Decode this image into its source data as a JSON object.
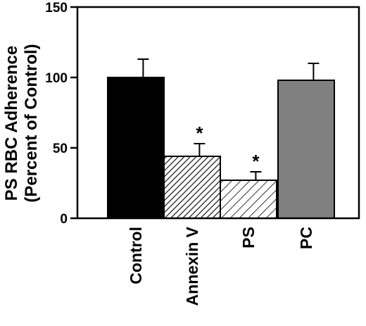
{
  "chart_data": {
    "type": "bar",
    "title": "",
    "ylabel_line1": "PS RBC Adherence",
    "ylabel_line2": "(Percent of Control)",
    "xlabel": "",
    "ylim": [
      0,
      150
    ],
    "yticks": [
      "0",
      "50",
      "100",
      "150"
    ],
    "categories": [
      "Control",
      "Annexin V",
      "PS",
      "PC"
    ],
    "values": [
      100,
      44,
      27,
      98
    ],
    "error_plus": [
      13,
      9,
      6,
      12
    ],
    "significance": [
      "",
      "*",
      "*",
      ""
    ],
    "fills": [
      "solid-black",
      "hatch-dense",
      "hatch-sparse",
      "solid-gray"
    ],
    "colors": {
      "control": "#000000",
      "pc": "#808080",
      "hatch": "#000000"
    },
    "grid": false,
    "legend": "none"
  }
}
